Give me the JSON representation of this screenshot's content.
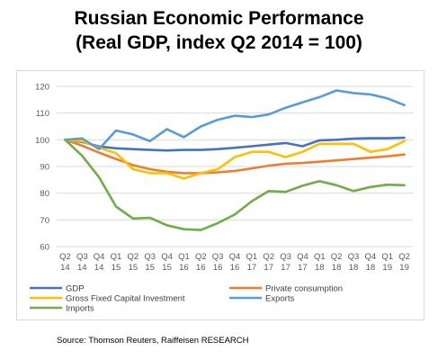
{
  "title_line1": "Russian Economic Performance",
  "title_line2": "(Real GDP, index Q2 2014 = 100)",
  "source": "Source: Thomson Reuters, Raiffeisen RESEARCH",
  "chart_data": {
    "type": "line",
    "title": "Russian Economic Performance (Real GDP, index Q2 2014 = 100)",
    "xlabel": "",
    "ylabel": "",
    "ylim": [
      60,
      120
    ],
    "yticks": [
      60,
      70,
      80,
      90,
      100,
      110,
      120
    ],
    "grid": true,
    "legend_position": "bottom",
    "categories": [
      [
        "Q2",
        "14"
      ],
      [
        "Q3",
        "14"
      ],
      [
        "Q4",
        "14"
      ],
      [
        "Q1",
        "15"
      ],
      [
        "Q2",
        "15"
      ],
      [
        "Q3",
        "15"
      ],
      [
        "Q4",
        "15"
      ],
      [
        "Q1",
        "16"
      ],
      [
        "Q2",
        "16"
      ],
      [
        "Q3",
        "16"
      ],
      [
        "Q4",
        "16"
      ],
      [
        "Q1",
        "17"
      ],
      [
        "Q2",
        "17"
      ],
      [
        "Q3",
        "17"
      ],
      [
        "Q4",
        "17"
      ],
      [
        "Q1",
        "18"
      ],
      [
        "Q2",
        "18"
      ],
      [
        "Q3",
        "18"
      ],
      [
        "Q4",
        "18"
      ],
      [
        "Q1",
        "19"
      ],
      [
        "Q2",
        "19"
      ]
    ],
    "series": [
      {
        "name": "GDP",
        "color": "#4472C4",
        "values": [
          100,
          99.2,
          97.5,
          96.8,
          96.5,
          96.2,
          96.0,
          96.2,
          96.2,
          96.5,
          97.0,
          97.6,
          98.2,
          98.8,
          97.6,
          99.8,
          100.0,
          100.4,
          100.6,
          100.6,
          100.8
        ]
      },
      {
        "name": "Private consumption",
        "color": "#ED7D31",
        "values": [
          100,
          97.8,
          95.2,
          92.8,
          90.5,
          89.0,
          88.0,
          87.5,
          87.5,
          87.8,
          88.3,
          89.3,
          90.3,
          91.0,
          91.3,
          91.8,
          92.3,
          92.8,
          93.3,
          93.8,
          94.5
        ]
      },
      {
        "name": "Gross Fixed Capital Investment",
        "color": "#FFC000",
        "values": [
          100,
          99.5,
          97.0,
          95.0,
          89.0,
          87.5,
          87.5,
          85.5,
          87.5,
          89.0,
          93.5,
          95.5,
          95.5,
          93.5,
          95.5,
          98.5,
          98.5,
          98.5,
          95.5,
          96.5,
          99.5
        ]
      },
      {
        "name": "Exports",
        "color": "#5B9BD5",
        "values": [
          100,
          100.5,
          96.5,
          103.5,
          102.0,
          99.5,
          104.0,
          101.0,
          105.0,
          107.5,
          109.0,
          108.5,
          109.5,
          112.0,
          114.0,
          116.0,
          118.5,
          117.5,
          117.0,
          115.5,
          113.0
        ]
      },
      {
        "name": "Imports",
        "color": "#70AD47",
        "values": [
          100,
          94.0,
          86.0,
          75.0,
          70.5,
          70.8,
          68.0,
          66.5,
          66.2,
          68.8,
          72.0,
          77.0,
          80.8,
          80.5,
          82.8,
          84.5,
          83.0,
          80.8,
          82.3,
          83.2,
          83.0
        ]
      }
    ]
  }
}
